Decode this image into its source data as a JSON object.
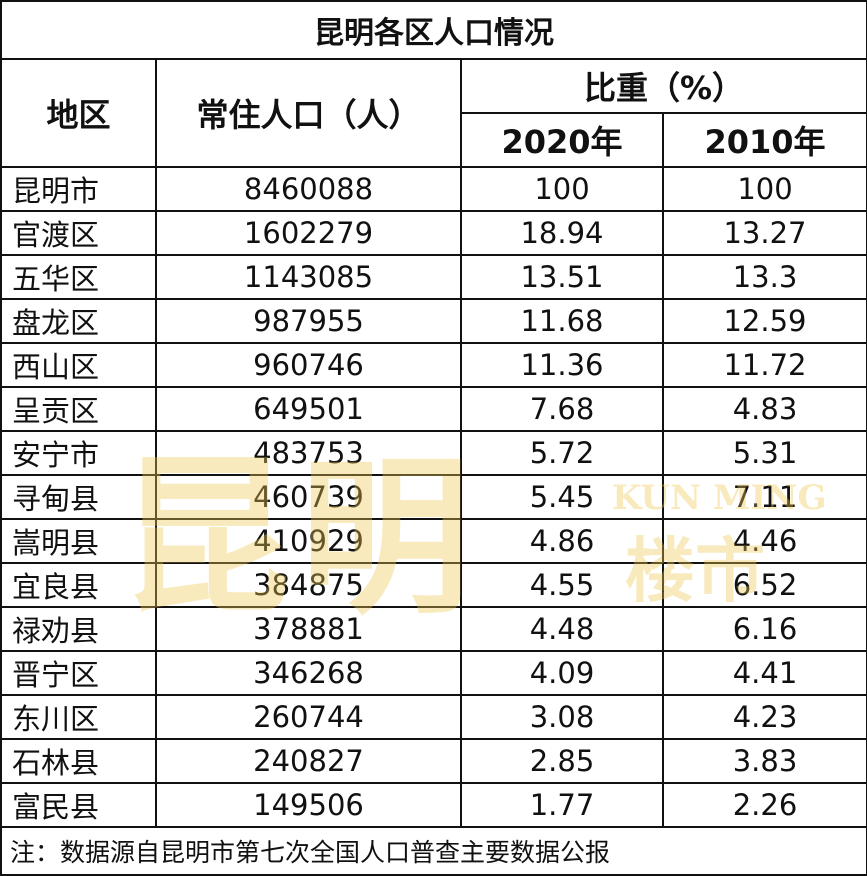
{
  "table": {
    "title": "昆明各区人口情况",
    "headers": {
      "region": "地区",
      "population": "常住人口（人）",
      "share": "比重（%）",
      "years": [
        "2020年",
        "2010年"
      ]
    },
    "rows": [
      [
        "昆明市",
        "8460088",
        "100",
        "100"
      ],
      [
        "官渡区",
        "1602279",
        "18.94",
        "13.27"
      ],
      [
        "五华区",
        "1143085",
        "13.51",
        "13.3"
      ],
      [
        "盘龙区",
        "987955",
        "11.68",
        "12.59"
      ],
      [
        "西山区",
        "960746",
        "11.36",
        "11.72"
      ],
      [
        "呈贡区",
        "649501",
        "7.68",
        "4.83"
      ],
      [
        "安宁市",
        "483753",
        "5.72",
        "5.31"
      ],
      [
        "寻甸县",
        "460739",
        "5.45",
        "7.11"
      ],
      [
        "嵩明县",
        "410929",
        "4.86",
        "4.46"
      ],
      [
        "宜良县",
        "384875",
        "4.55",
        "6.52"
      ],
      [
        "禄劝县",
        "378881",
        "4.48",
        "6.16"
      ],
      [
        "晋宁区",
        "346268",
        "4.09",
        "4.41"
      ],
      [
        "东川区",
        "260744",
        "3.08",
        "4.23"
      ],
      [
        "石林县",
        "240827",
        "2.85",
        "3.83"
      ],
      [
        "富民县",
        "149506",
        "1.77",
        "2.26"
      ]
    ],
    "footnote": "注：数据源自昆明市第七次全国人口普查主要数据公报"
  },
  "watermark": {
    "main": "昆明",
    "latin": "KUN MING",
    "sub": "楼市"
  }
}
